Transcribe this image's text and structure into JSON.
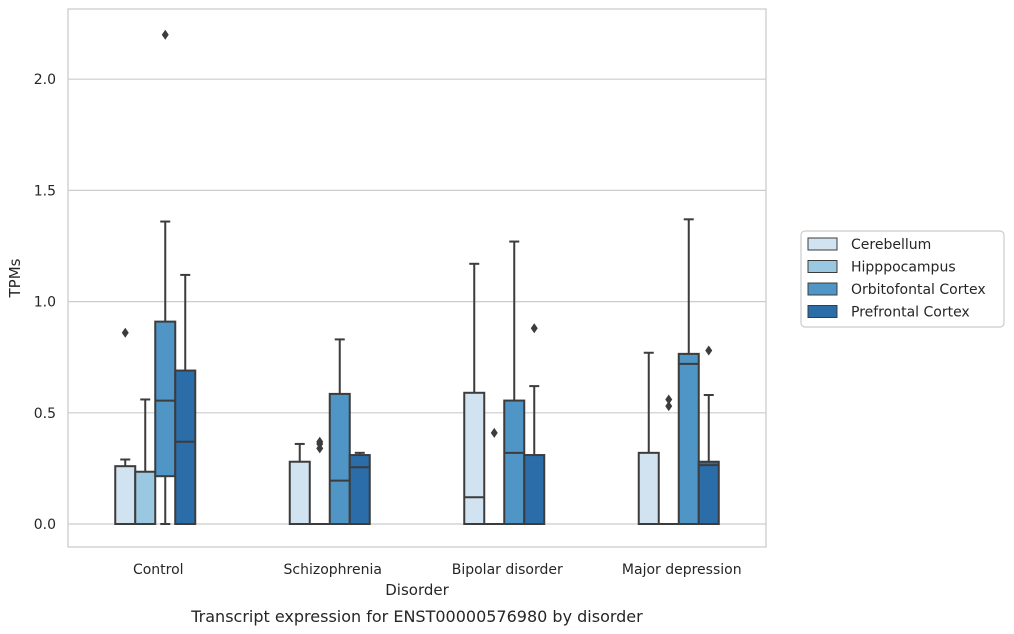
{
  "chart_data": {
    "type": "box",
    "title": "",
    "caption": "Transcript expression for ENST00000576980 by disorder",
    "xlabel": "Disorder",
    "ylabel": "TPMs",
    "ylim": [
      -0.105,
      2.32
    ],
    "yticks": [
      "0.0",
      "0.5",
      "1.0",
      "1.5",
      "2.0"
    ],
    "ytick_values": [
      0,
      0.5,
      1.0,
      1.5,
      2.0
    ],
    "grid": true,
    "legend_position": "right",
    "categories": [
      "Control",
      "Schizophrenia",
      "Bipolar disorder",
      "Major depression"
    ],
    "series": [
      {
        "name": "Cerebellum",
        "color": "#d1e2f1",
        "boxes": [
          {
            "whislo": 0.0,
            "q1": 0.0,
            "med": 0.0,
            "q3": 0.26,
            "whishi": 0.29,
            "fliers": [
              0.86
            ]
          },
          {
            "whislo": 0.0,
            "q1": 0.0,
            "med": 0.0,
            "q3": 0.28,
            "whishi": 0.36,
            "fliers": []
          },
          {
            "whislo": 0.0,
            "q1": 0.0,
            "med": 0.12,
            "q3": 0.59,
            "whishi": 1.17,
            "fliers": []
          },
          {
            "whislo": 0.0,
            "q1": 0.0,
            "med": 0.0,
            "q3": 0.32,
            "whishi": 0.77,
            "fliers": []
          }
        ]
      },
      {
        "name": "Hipppocampus",
        "color": "#9ac8e0",
        "boxes": [
          {
            "whislo": 0.0,
            "q1": 0.0,
            "med": 0.0,
            "q3": 0.235,
            "whishi": 0.56,
            "fliers": []
          },
          {
            "whislo": 0.0,
            "q1": 0.0,
            "med": 0.0,
            "q3": 0.0,
            "whishi": 0.0,
            "fliers": [
              0.34,
              0.36,
              0.37
            ]
          },
          {
            "whislo": 0.0,
            "q1": 0.0,
            "med": 0.0,
            "q3": 0.0,
            "whishi": 0.0,
            "fliers": [
              0.41
            ]
          },
          {
            "whislo": 0.0,
            "q1": 0.0,
            "med": 0.0,
            "q3": 0.0,
            "whishi": 0.0,
            "fliers": [
              0.53,
              0.56
            ]
          }
        ]
      },
      {
        "name": "Orbitofontal Cortex",
        "color": "#4f95c6",
        "boxes": [
          {
            "whislo": 0.0,
            "q1": 0.215,
            "med": 0.555,
            "q3": 0.91,
            "whishi": 1.36,
            "fliers": [
              2.2
            ]
          },
          {
            "whislo": 0.0,
            "q1": 0.0,
            "med": 0.195,
            "q3": 0.585,
            "whishi": 0.83,
            "fliers": []
          },
          {
            "whislo": 0.0,
            "q1": 0.0,
            "med": 0.32,
            "q3": 0.555,
            "whishi": 1.27,
            "fliers": []
          },
          {
            "whislo": 0.0,
            "q1": 0.0,
            "med": 0.72,
            "q3": 0.765,
            "whishi": 1.37,
            "fliers": []
          }
        ]
      },
      {
        "name": "Prefrontal Cortex",
        "color": "#2b6da8",
        "boxes": [
          {
            "whislo": 0.0,
            "q1": 0.0,
            "med": 0.37,
            "q3": 0.69,
            "whishi": 1.12,
            "fliers": []
          },
          {
            "whislo": 0.0,
            "q1": 0.0,
            "med": 0.255,
            "q3": 0.31,
            "whishi": 0.32,
            "fliers": []
          },
          {
            "whislo": 0.0,
            "q1": 0.0,
            "med": 0.0,
            "q3": 0.31,
            "whishi": 0.62,
            "fliers": [
              0.88
            ]
          },
          {
            "whislo": 0.0,
            "q1": 0.0,
            "med": 0.265,
            "q3": 0.28,
            "whishi": 0.58,
            "fliers": [
              0.78
            ]
          }
        ]
      }
    ]
  }
}
